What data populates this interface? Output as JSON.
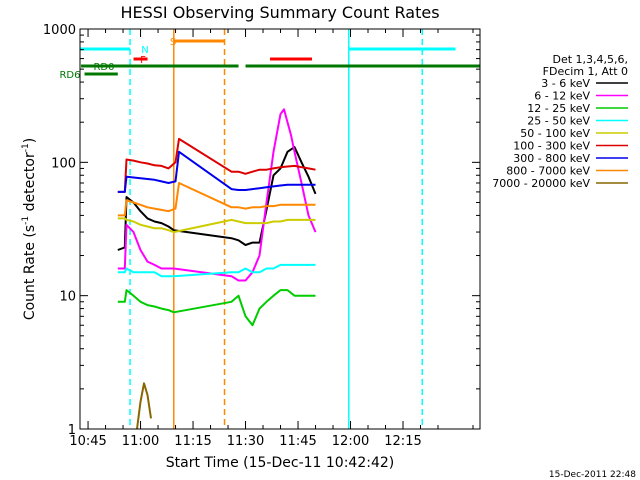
{
  "chart_data": {
    "type": "line",
    "title": "HESSI Observing Summary Count Rates",
    "xlabel": "Start Time (15-Dec-11 10:42:42)",
    "ylabel_main": "Count Rate (s",
    "ylabel_sup1": "-1",
    "ylabel_mid": " detector",
    "ylabel_sup2": "-1",
    "ylabel_end": ")",
    "footer": "15-Dec-2011 22:48",
    "y_scale": "log",
    "xlim": [
      42.7,
      157
    ],
    "ylim": [
      1,
      1000
    ],
    "x_ticks": [
      {
        "value": 45,
        "label": "10:45"
      },
      {
        "value": 60,
        "label": "11:00"
      },
      {
        "value": 75,
        "label": "11:15"
      },
      {
        "value": 90,
        "label": "11:30"
      },
      {
        "value": 105,
        "label": "11:45"
      },
      {
        "value": 120,
        "label": "12:00"
      },
      {
        "value": 135,
        "label": "12:15"
      }
    ],
    "y_ticks": [
      {
        "value": 1,
        "label": "1"
      },
      {
        "value": 10,
        "label": "10"
      },
      {
        "value": 100,
        "label": "100"
      },
      {
        "value": 1000,
        "label": "1000"
      }
    ],
    "legend_header": [
      "Det 1,3,4,5,6,",
      "FDecim 1, Att 0"
    ],
    "legend_position": "right",
    "series": [
      {
        "name": "3 - 6 keV",
        "color": "#000000",
        "x": [
          53.5,
          55.5,
          56,
          58,
          60,
          62,
          64,
          66,
          68,
          69.5,
          86,
          88,
          90,
          92,
          94,
          96,
          98,
          100,
          102,
          104,
          106,
          108,
          110
        ],
        "y": [
          22,
          23,
          55,
          50,
          43,
          38,
          36,
          35,
          33,
          31,
          27,
          26,
          24,
          25,
          25,
          44,
          80,
          90,
          120,
          130,
          100,
          78,
          58
        ]
      },
      {
        "name": "6 - 12 keV",
        "color": "#ff00ff",
        "x": [
          53.5,
          55.5,
          56,
          58,
          60,
          62,
          64,
          66,
          68,
          69.5,
          86,
          88,
          90,
          92,
          94,
          96,
          98,
          100,
          101,
          102,
          103,
          104,
          106,
          108,
          110
        ],
        "y": [
          16,
          16,
          34,
          30,
          22,
          18,
          17,
          16,
          16,
          16,
          14,
          13,
          13,
          15,
          20,
          50,
          120,
          230,
          250,
          200,
          160,
          120,
          70,
          40,
          30
        ]
      },
      {
        "name": "12 - 25 keV",
        "color": "#00cc00",
        "x": [
          53.5,
          55.5,
          56,
          58,
          60,
          62,
          64,
          66,
          68,
          69.5,
          86,
          88,
          90,
          92,
          94,
          96,
          98,
          100,
          102,
          104,
          106,
          108,
          110
        ],
        "y": [
          9,
          9,
          11,
          10,
          9,
          8.5,
          8.3,
          8,
          7.8,
          7.5,
          9,
          10,
          7,
          6,
          8,
          9,
          10,
          11,
          11,
          10,
          10,
          10,
          10
        ]
      },
      {
        "name": "25 - 50 keV",
        "color": "#00ffff",
        "x": [
          53.5,
          55.5,
          56,
          58,
          60,
          62,
          64,
          66,
          68,
          69.5,
          86,
          88,
          90,
          92,
          94,
          96,
          98,
          100,
          102,
          104,
          106,
          108,
          110
        ],
        "y": [
          15,
          15,
          16,
          15,
          15,
          15,
          15,
          14,
          14,
          14,
          15,
          15,
          16,
          15,
          15,
          16,
          16,
          17,
          17,
          17,
          17,
          17,
          17
        ]
      },
      {
        "name": "50 - 100 keV",
        "color": "#cccc00",
        "x": [
          53.5,
          55.5,
          56,
          58,
          60,
          62,
          64,
          66,
          68,
          69.5,
          86,
          88,
          90,
          92,
          94,
          96,
          98,
          100,
          102,
          104,
          106,
          108,
          110
        ],
        "y": [
          38,
          38,
          37,
          36,
          34,
          33,
          32,
          32,
          31,
          30,
          37,
          36,
          35,
          35,
          35,
          35,
          36,
          36,
          37,
          37,
          37,
          37,
          37
        ]
      },
      {
        "name": "100 - 300 keV",
        "color": "#dd0000",
        "x": [
          53.5,
          55.5,
          56,
          58,
          60,
          62,
          64,
          66,
          68,
          70,
          71,
          86,
          88,
          90,
          92,
          94,
          96,
          98,
          100,
          102,
          104,
          106,
          108,
          110
        ],
        "y": [
          60,
          60,
          105,
          103,
          100,
          98,
          95,
          94,
          90,
          100,
          150,
          85,
          85,
          82,
          85,
          88,
          88,
          90,
          92,
          93,
          94,
          92,
          90,
          88
        ]
      },
      {
        "name": "300 - 800 keV",
        "color": "#0000ee",
        "x": [
          53.5,
          55.5,
          56,
          58,
          60,
          62,
          64,
          66,
          68,
          70,
          71,
          86,
          88,
          90,
          92,
          94,
          96,
          98,
          100,
          102,
          104,
          106,
          108,
          110
        ],
        "y": [
          60,
          60,
          78,
          77,
          76,
          75,
          74,
          72,
          70,
          72,
          120,
          63,
          62,
          62,
          63,
          64,
          65,
          66,
          67,
          68,
          68,
          68,
          68,
          68
        ]
      },
      {
        "name": "800 - 7000 keV",
        "color": "#ff8800",
        "x": [
          53.5,
          55.5,
          56,
          58,
          60,
          62,
          64,
          66,
          68,
          70,
          71,
          86,
          88,
          90,
          92,
          94,
          96,
          98,
          100,
          102,
          104,
          106,
          108,
          110
        ],
        "y": [
          40,
          40,
          52,
          50,
          48,
          46,
          45,
          44,
          43,
          45,
          70,
          46,
          46,
          45,
          46,
          46,
          47,
          47,
          48,
          48,
          48,
          48,
          48,
          48
        ]
      },
      {
        "name": "7000 - 20000 keV",
        "color": "#886600",
        "x": [
          59,
          60,
          61,
          62,
          63
        ],
        "y": [
          1,
          1.6,
          2.2,
          1.8,
          1.2
        ]
      }
    ],
    "flag_bars": [
      {
        "label": "N",
        "color": "#00ffff",
        "segments": [
          [
            42.7,
            57
          ],
          [
            119.5,
            150
          ]
        ]
      },
      {
        "label": "S",
        "color": "#ff8800",
        "segments": [
          [
            69.5,
            84
          ]
        ]
      },
      {
        "label": "F",
        "color": "#ff0000",
        "segments": [
          [
            58,
            62
          ],
          [
            97,
            109
          ]
        ]
      },
      {
        "label": "RD0",
        "color": "#007700",
        "segments": [
          [
            43,
            88
          ],
          [
            90,
            157
          ]
        ]
      },
      {
        "label": "RD6",
        "color": "#007700",
        "segments": [
          [
            44,
            53.5
          ]
        ]
      }
    ],
    "vertical_markers": [
      {
        "x": 57,
        "color": "#00ffff",
        "style": "dashed"
      },
      {
        "x": 69.5,
        "color": "#ff8800",
        "style": "solid"
      },
      {
        "x": 84,
        "color": "#ff8800",
        "style": "dashed"
      },
      {
        "x": 119.5,
        "color": "#00ffff",
        "style": "solid"
      },
      {
        "x": 140.5,
        "color": "#00ffff",
        "style": "dashed"
      }
    ]
  }
}
